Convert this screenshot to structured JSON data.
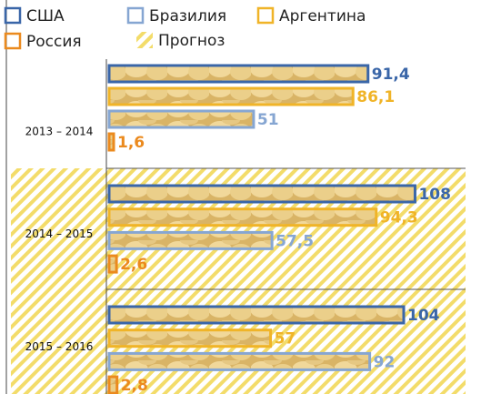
{
  "chart_data": {
    "type": "hbar",
    "categories": [
      "2013 – 2014",
      "2014 – 2015",
      "2015 – 2016"
    ],
    "series": [
      {
        "name": "США",
        "color": "#3a66a8",
        "values": [
          91.4,
          108,
          104
        ],
        "value_labels": [
          "91,4",
          "108",
          "104"
        ]
      },
      {
        "name": "Бразилия",
        "color": "#86a6d2",
        "values": [
          51,
          57.5,
          92
        ],
        "value_labels": [
          "51",
          "57,5",
          "92"
        ]
      },
      {
        "name": "Аргентина",
        "color": "#f0b428",
        "values": [
          86.1,
          94.3,
          57
        ],
        "value_labels": [
          "86,1",
          "94,3",
          "57"
        ]
      },
      {
        "name": "Россия",
        "color": "#eb8a1e",
        "values": [
          1.6,
          2.6,
          2.8
        ],
        "value_labels": [
          "1,6",
          "2,6",
          "2,8"
        ]
      }
    ],
    "forecast_label": "Прогноз",
    "forecast": [
      false,
      true,
      true
    ],
    "xlim": [
      0,
      130
    ]
  }
}
